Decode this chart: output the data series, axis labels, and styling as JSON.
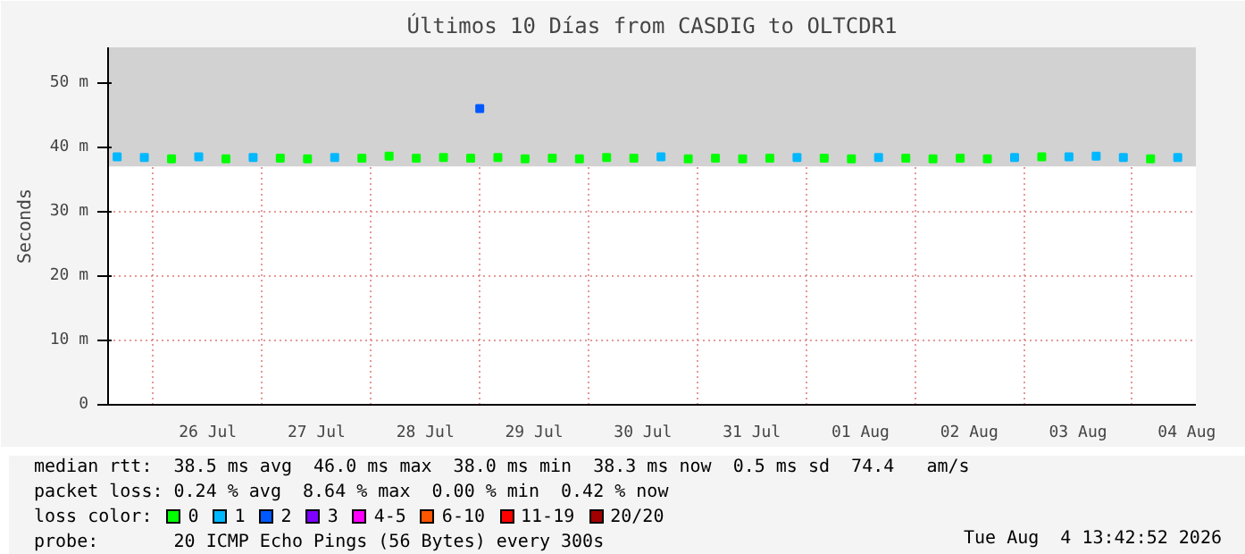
{
  "chart_data": {
    "type": "scatter",
    "title": "Últimos 10 Días from CASDIG to OLTCDR1",
    "ylabel": "Seconds",
    "xlim": [
      "2026-07-25T14:00",
      "2026-08-04T14:00"
    ],
    "xticks": [
      {
        "value": "2026-07-26T00:00",
        "label": null
      },
      {
        "value": "2026-07-26T12:00",
        "label": "26 Jul"
      },
      {
        "value": "2026-07-27T00:00",
        "label": null
      },
      {
        "value": "2026-07-27T12:00",
        "label": "27 Jul"
      },
      {
        "value": "2026-07-28T00:00",
        "label": null
      },
      {
        "value": "2026-07-28T12:00",
        "label": "28 Jul"
      },
      {
        "value": "2026-07-29T00:00",
        "label": null
      },
      {
        "value": "2026-07-29T12:00",
        "label": "29 Jul"
      },
      {
        "value": "2026-07-30T00:00",
        "label": null
      },
      {
        "value": "2026-07-30T12:00",
        "label": "30 Jul"
      },
      {
        "value": "2026-07-31T00:00",
        "label": null
      },
      {
        "value": "2026-07-31T12:00",
        "label": "31 Jul"
      },
      {
        "value": "2026-08-01T00:00",
        "label": null
      },
      {
        "value": "2026-08-01T12:00",
        "label": "01 Aug"
      },
      {
        "value": "2026-08-02T00:00",
        "label": null
      },
      {
        "value": "2026-08-02T12:00",
        "label": "02 Aug"
      },
      {
        "value": "2026-08-03T00:00",
        "label": null
      },
      {
        "value": "2026-08-03T12:00",
        "label": "03 Aug"
      },
      {
        "value": "2026-08-04T00:00",
        "label": null
      },
      {
        "value": "2026-08-04T12:00",
        "label": "04 Aug"
      }
    ],
    "ylim": [
      0,
      55.5
    ],
    "yticks": [
      {
        "value": 0,
        "label": "0"
      },
      {
        "value": 10,
        "label": "10 m"
      },
      {
        "value": 20,
        "label": "20 m"
      },
      {
        "value": 30,
        "label": "30 m"
      },
      {
        "value": 40,
        "label": "40 m"
      },
      {
        "value": 50,
        "label": "50 m"
      }
    ],
    "grid": true,
    "bands": [
      {
        "axis": "y",
        "from": 37,
        "to": 55.5,
        "color": "#d2d2d2"
      }
    ],
    "legend": "bottom",
    "legend_title": "loss color:",
    "series": [
      {
        "name": "0",
        "color": "#00ff00",
        "marker": "square",
        "x": [
          "2026-07-26T04:00",
          "2026-07-26T16:00",
          "2026-07-27T04:00",
          "2026-07-27T10:00",
          "2026-07-27T22:00",
          "2026-07-28T04:00",
          "2026-07-28T10:00",
          "2026-07-28T16:00",
          "2026-07-28T22:00",
          "2026-07-29T04:00",
          "2026-07-29T10:00",
          "2026-07-29T16:00",
          "2026-07-29T22:00",
          "2026-07-30T04:00",
          "2026-07-30T10:00",
          "2026-07-30T22:00",
          "2026-07-31T04:00",
          "2026-07-31T10:00",
          "2026-07-31T16:00",
          "2026-08-01T04:00",
          "2026-08-01T10:00",
          "2026-08-01T22:00",
          "2026-08-02T04:00",
          "2026-08-02T10:00",
          "2026-08-02T16:00",
          "2026-08-03T04:00",
          "2026-08-04T04:00"
        ],
        "values": [
          38.2,
          38.2,
          38.3,
          38.2,
          38.3,
          38.6,
          38.3,
          38.4,
          38.3,
          38.4,
          38.2,
          38.3,
          38.2,
          38.4,
          38.3,
          38.2,
          38.3,
          38.2,
          38.3,
          38.3,
          38.2,
          38.3,
          38.2,
          38.3,
          38.2,
          38.5,
          38.2
        ]
      },
      {
        "name": "1",
        "color": "#00b8ff",
        "marker": "square",
        "x": [
          "2026-07-25T16:00",
          "2026-07-25T22:00",
          "2026-07-26T10:00",
          "2026-07-26T22:00",
          "2026-07-27T16:00",
          "2026-07-30T16:00",
          "2026-07-31T22:00",
          "2026-08-01T16:00",
          "2026-08-02T22:00",
          "2026-08-03T10:00",
          "2026-08-03T16:00",
          "2026-08-03T22:00",
          "2026-08-04T10:00"
        ],
        "values": [
          38.5,
          38.4,
          38.5,
          38.4,
          38.4,
          38.5,
          38.4,
          38.4,
          38.4,
          38.5,
          38.6,
          38.4,
          38.4
        ]
      },
      {
        "name": "2",
        "color": "#0059ff",
        "marker": "square",
        "x": [
          "2026-07-29T00:00"
        ],
        "values": [
          46.0
        ]
      },
      {
        "name": "3",
        "color": "#7e00ff"
      },
      {
        "name": "4-5",
        "color": "#ff00ff"
      },
      {
        "name": "6-10",
        "color": "#ff5500"
      },
      {
        "name": "11-19",
        "color": "#ff0000"
      },
      {
        "name": "20/20",
        "color": "#a10000"
      }
    ],
    "annotations": [
      "median rtt:  38.5 ms avg  46.0 ms max  38.0 ms min  38.3 ms now  0.5 ms sd  74.4   am/s",
      "packet loss: 0.24 % avg  8.64 % max  0.00 % min  0.42 % now",
      "probe:       20 ICMP Echo Pings (56 Bytes) every 300s",
      "Tue Aug  4 13:42:52 2026"
    ]
  }
}
